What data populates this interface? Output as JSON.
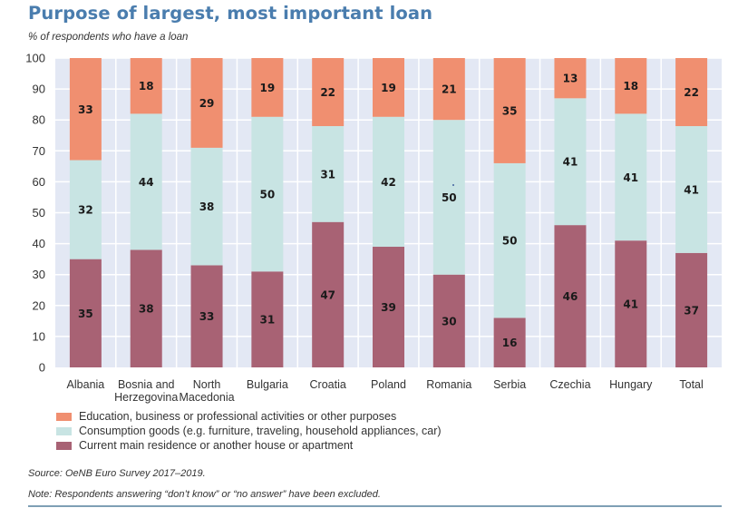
{
  "title": "Purpose of largest, most important loan",
  "subtitle": "% of respondents who have a loan",
  "source": "Source: OeNB Euro Survey 2017–2019.",
  "note": "Note: Respondents answering “don’t know” or “no answer” have been excluded.",
  "colors": {
    "title": "#4a7dae",
    "plot_background": "#e3e8f4",
    "gridline": "#ffffff",
    "education": "#f08f70",
    "consumption": "#c8e4e3",
    "residence": "#a86274"
  },
  "chart_data": {
    "type": "bar",
    "stacked": true,
    "title": "Purpose of largest, most important loan",
    "subtitle": "% of respondents who have a loan",
    "xlabel": "",
    "ylabel": "% of respondents who have a loan",
    "ylim": [
      0,
      100
    ],
    "yticks": [
      0,
      10,
      20,
      30,
      40,
      50,
      60,
      70,
      80,
      90,
      100
    ],
    "grid": true,
    "legend_position": "bottom-left",
    "categories": [
      [
        "Albania"
      ],
      [
        "Bosnia and",
        "Herzegovina"
      ],
      [
        "North",
        "Macedonia"
      ],
      [
        "Bulgaria"
      ],
      [
        "Croatia"
      ],
      [
        "Poland"
      ],
      [
        "Romania"
      ],
      [
        "Serbia"
      ],
      [
        "Czechia"
      ],
      [
        "Hungary"
      ],
      [
        "Total"
      ]
    ],
    "series": [
      {
        "key": "residence",
        "name": "Current main residence or another house or apartment",
        "values": [
          35,
          38,
          33,
          31,
          47,
          39,
          30,
          16,
          46,
          41,
          37
        ]
      },
      {
        "key": "consumption",
        "name": "Consumption goods (e.g. furniture, traveling, household appliances, car)",
        "values": [
          32,
          44,
          38,
          50,
          31,
          42,
          50,
          50,
          41,
          41,
          41
        ]
      },
      {
        "key": "education",
        "name": "Education, business or professional activities or other purposes",
        "values": [
          33,
          18,
          29,
          19,
          22,
          19,
          21,
          35,
          13,
          18,
          22
        ]
      }
    ],
    "legend_order": [
      "education",
      "consumption",
      "residence"
    ]
  }
}
